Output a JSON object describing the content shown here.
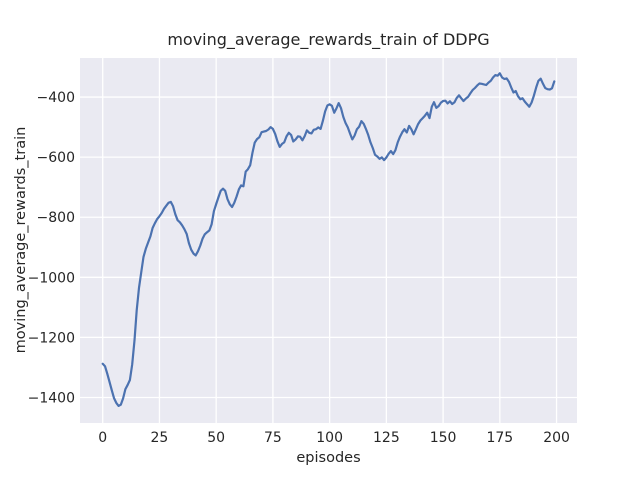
{
  "figure": {
    "title": "moving_average_rewards_train of DDPG",
    "xlabel": "episodes",
    "ylabel": "moving_average_rewards_train"
  },
  "colors": {
    "figure_background": "#ffffff",
    "plot_background": "#eaeaf2",
    "gridline": "#ffffff",
    "line": "#4c72b0",
    "text": "#262626"
  },
  "chart_data": {
    "type": "line",
    "title": "moving_average_rewards_train of DDPG",
    "xlabel": "episodes",
    "ylabel": "moving_average_rewards_train",
    "legend": null,
    "grid": true,
    "x_ticks": [
      0,
      25,
      50,
      75,
      100,
      125,
      150,
      175,
      200
    ],
    "y_ticks": [
      -400,
      -600,
      -800,
      -1000,
      -1200,
      -1400
    ],
    "xlim": [
      -10,
      209
    ],
    "ylim": [
      -1485,
      -270
    ],
    "x_start": 0,
    "x_step": 1,
    "series": [
      {
        "name": "moving_average_rewards_train",
        "values": [
          -1288,
          -1296,
          -1320,
          -1348,
          -1376,
          -1402,
          -1418,
          -1428,
          -1424,
          -1403,
          -1372,
          -1358,
          -1342,
          -1290,
          -1210,
          -1110,
          -1035,
          -982,
          -932,
          -905,
          -884,
          -864,
          -836,
          -820,
          -806,
          -797,
          -786,
          -772,
          -762,
          -752,
          -749,
          -763,
          -790,
          -810,
          -817,
          -827,
          -840,
          -856,
          -886,
          -908,
          -921,
          -927,
          -913,
          -894,
          -872,
          -857,
          -850,
          -844,
          -824,
          -780,
          -756,
          -734,
          -712,
          -705,
          -712,
          -740,
          -757,
          -766,
          -752,
          -731,
          -707,
          -694,
          -697,
          -648,
          -640,
          -627,
          -585,
          -552,
          -540,
          -534,
          -517,
          -515,
          -513,
          -508,
          -500,
          -506,
          -523,
          -547,
          -566,
          -556,
          -551,
          -531,
          -519,
          -526,
          -548,
          -541,
          -531,
          -532,
          -544,
          -530,
          -511,
          -519,
          -521,
          -509,
          -507,
          -501,
          -506,
          -480,
          -448,
          -428,
          -424,
          -429,
          -452,
          -438,
          -420,
          -437,
          -466,
          -486,
          -501,
          -522,
          -541,
          -528,
          -507,
          -499,
          -480,
          -489,
          -506,
          -526,
          -551,
          -570,
          -592,
          -598,
          -606,
          -601,
          -610,
          -601,
          -589,
          -580,
          -590,
          -577,
          -551,
          -532,
          -517,
          -507,
          -518,
          -496,
          -507,
          -524,
          -507,
          -490,
          -478,
          -470,
          -462,
          -452,
          -470,
          -432,
          -417,
          -436,
          -430,
          -419,
          -413,
          -412,
          -421,
          -414,
          -423,
          -417,
          -403,
          -394,
          -404,
          -413,
          -405,
          -399,
          -388,
          -377,
          -370,
          -362,
          -355,
          -356,
          -358,
          -360,
          -352,
          -346,
          -335,
          -327,
          -329,
          -321,
          -335,
          -340,
          -338,
          -349,
          -368,
          -385,
          -380,
          -397,
          -407,
          -404,
          -415,
          -424,
          -432,
          -418,
          -395,
          -368,
          -346,
          -339,
          -356,
          -370,
          -374,
          -375,
          -371,
          -348
        ]
      }
    ]
  }
}
